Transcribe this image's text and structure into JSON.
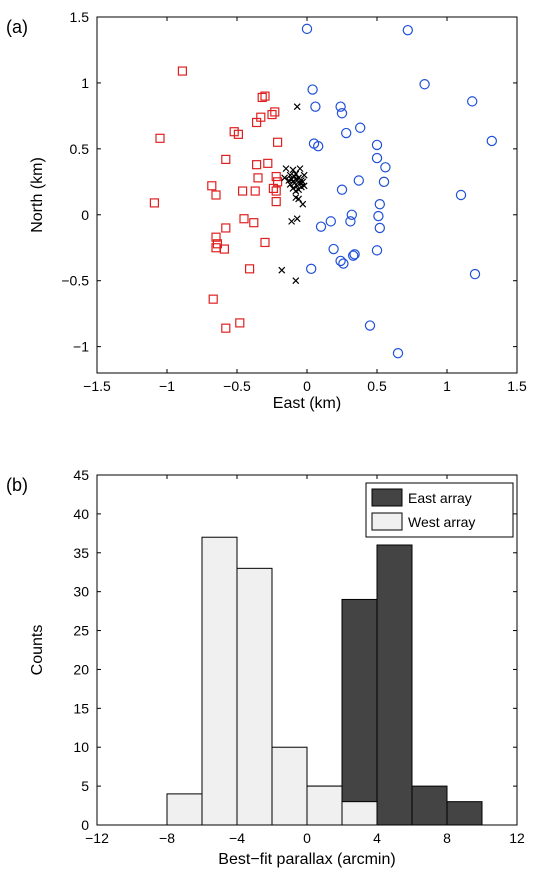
{
  "chart_data": [
    {
      "panel_label": "(a)",
      "type": "scatter",
      "xlabel": "East (km)",
      "ylabel": "North (km)",
      "xlim": [
        -1.5,
        1.5
      ],
      "ylim": [
        -1.2,
        1.5
      ],
      "xticks": [
        -1.5,
        -1,
        -0.5,
        0,
        0.5,
        1,
        1.5
      ],
      "yticks": [
        -1,
        -0.5,
        0,
        0.5,
        1,
        1.5
      ],
      "xtick_labels": [
        "−1.5",
        "−1",
        "−0.5",
        "0",
        "0.5",
        "1",
        "1.5"
      ],
      "ytick_labels": [
        "−1",
        "−0.5",
        "0",
        "0.5",
        "1",
        "1.5"
      ],
      "series": [
        {
          "marker": "square",
          "color": "#e02020",
          "points": [
            [
              -0.89,
              1.09
            ],
            [
              -1.05,
              0.58
            ],
            [
              -1.09,
              0.09
            ],
            [
              -0.32,
              0.89
            ],
            [
              -0.3,
              0.9
            ],
            [
              -0.33,
              0.74
            ],
            [
              -0.36,
              0.7
            ],
            [
              -0.23,
              0.78
            ],
            [
              -0.25,
              0.76
            ],
            [
              -0.52,
              0.63
            ],
            [
              -0.49,
              0.61
            ],
            [
              -0.58,
              0.42
            ],
            [
              -0.21,
              0.55
            ],
            [
              -0.28,
              0.39
            ],
            [
              -0.36,
              0.38
            ],
            [
              -0.35,
              0.28
            ],
            [
              -0.22,
              0.29
            ],
            [
              -0.21,
              0.25
            ],
            [
              -0.24,
              0.2
            ],
            [
              -0.46,
              0.18
            ],
            [
              -0.37,
              0.18
            ],
            [
              -0.22,
              0.18
            ],
            [
              -0.68,
              0.22
            ],
            [
              -0.65,
              0.15
            ],
            [
              -0.22,
              0.1
            ],
            [
              -0.45,
              -0.03
            ],
            [
              -0.38,
              -0.06
            ],
            [
              -0.58,
              -0.1
            ],
            [
              -0.65,
              -0.17
            ],
            [
              -0.64,
              -0.22
            ],
            [
              -0.65,
              -0.25
            ],
            [
              -0.59,
              -0.26
            ],
            [
              -0.3,
              -0.21
            ],
            [
              -0.41,
              -0.41
            ],
            [
              -0.67,
              -0.64
            ],
            [
              -0.48,
              -0.82
            ],
            [
              -0.58,
              -0.86
            ]
          ]
        },
        {
          "marker": "circle",
          "color": "#1f50d8",
          "points": [
            [
              0.0,
              1.41
            ],
            [
              0.72,
              1.4
            ],
            [
              0.84,
              0.99
            ],
            [
              0.04,
              0.95
            ],
            [
              1.18,
              0.86
            ],
            [
              0.06,
              0.82
            ],
            [
              0.24,
              0.82
            ],
            [
              0.25,
              0.77
            ],
            [
              0.38,
              0.66
            ],
            [
              0.28,
              0.62
            ],
            [
              1.32,
              0.56
            ],
            [
              0.05,
              0.54
            ],
            [
              0.08,
              0.52
            ],
            [
              0.5,
              0.53
            ],
            [
              0.5,
              0.43
            ],
            [
              0.56,
              0.36
            ],
            [
              0.55,
              0.25
            ],
            [
              0.37,
              0.26
            ],
            [
              0.25,
              0.19
            ],
            [
              0.52,
              0.08
            ],
            [
              0.32,
              0.0
            ],
            [
              0.51,
              -0.01
            ],
            [
              1.1,
              0.15
            ],
            [
              0.17,
              -0.05
            ],
            [
              0.31,
              -0.05
            ],
            [
              0.1,
              -0.09
            ],
            [
              0.52,
              -0.1
            ],
            [
              0.19,
              -0.26
            ],
            [
              0.34,
              -0.3
            ],
            [
              0.33,
              -0.31
            ],
            [
              0.5,
              -0.27
            ],
            [
              0.24,
              -0.35
            ],
            [
              0.26,
              -0.37
            ],
            [
              0.03,
              -0.41
            ],
            [
              1.2,
              -0.45
            ],
            [
              0.45,
              -0.84
            ],
            [
              0.65,
              -1.05
            ]
          ]
        },
        {
          "marker": "x",
          "color": "#000000",
          "points": [
            [
              -0.07,
              0.82
            ],
            [
              -0.1,
              0.34
            ],
            [
              -0.05,
              0.35
            ],
            [
              -0.02,
              0.3
            ],
            [
              -0.15,
              0.35
            ],
            [
              -0.12,
              0.3
            ],
            [
              -0.08,
              0.31
            ],
            [
              -0.16,
              0.28
            ],
            [
              -0.13,
              0.26
            ],
            [
              -0.11,
              0.27
            ],
            [
              -0.1,
              0.25
            ],
            [
              -0.09,
              0.24
            ],
            [
              -0.08,
              0.27
            ],
            [
              -0.07,
              0.26
            ],
            [
              -0.06,
              0.25
            ],
            [
              -0.05,
              0.24
            ],
            [
              -0.04,
              0.26
            ],
            [
              -0.03,
              0.25
            ],
            [
              -0.06,
              0.28
            ],
            [
              -0.09,
              0.29
            ],
            [
              -0.12,
              0.23
            ],
            [
              -0.07,
              0.22
            ],
            [
              -0.04,
              0.21
            ],
            [
              -0.02,
              0.22
            ],
            [
              -0.1,
              0.2
            ],
            [
              -0.06,
              0.19
            ],
            [
              -0.08,
              0.18
            ],
            [
              -0.11,
              0.27
            ],
            [
              -0.08,
              0.13
            ],
            [
              -0.06,
              0.12
            ],
            [
              -0.03,
              0.08
            ],
            [
              -0.07,
              -0.03
            ],
            [
              -0.11,
              -0.05
            ],
            [
              -0.18,
              -0.42
            ],
            [
              -0.08,
              -0.5
            ]
          ]
        }
      ]
    },
    {
      "panel_label": "(b)",
      "type": "bar",
      "xlabel": "Best−fit parallax (arcmin)",
      "ylabel": "Counts",
      "xlim": [
        -12,
        12
      ],
      "ylim": [
        0,
        45
      ],
      "xticks": [
        -12,
        -8,
        -4,
        0,
        4,
        8,
        12
      ],
      "yticks": [
        0,
        5,
        10,
        15,
        20,
        25,
        30,
        35,
        40,
        45
      ],
      "xtick_labels": [
        "−12",
        "−8",
        "−4",
        "0",
        "4",
        "8",
        "12"
      ],
      "ytick_labels": [
        "0",
        "5",
        "10",
        "15",
        "20",
        "25",
        "30",
        "35",
        "40",
        "45"
      ],
      "bin_width": 2,
      "legend_position": "top-right",
      "series": [
        {
          "name": "East array",
          "color": "#444444",
          "bins": [
            [
              -5,
              3
            ],
            [
              -3,
              5
            ],
            [
              -1,
              5
            ],
            [
              1,
              5
            ],
            [
              3,
              29
            ],
            [
              5,
              36
            ],
            [
              7,
              5
            ],
            [
              9,
              3
            ]
          ]
        },
        {
          "name": "West array",
          "color": "#f0f0f0",
          "bins": [
            [
              -7,
              4
            ],
            [
              -5,
              37
            ],
            [
              -3,
              33
            ],
            [
              -1,
              10
            ],
            [
              1,
              5
            ],
            [
              3,
              3
            ]
          ]
        }
      ]
    }
  ]
}
